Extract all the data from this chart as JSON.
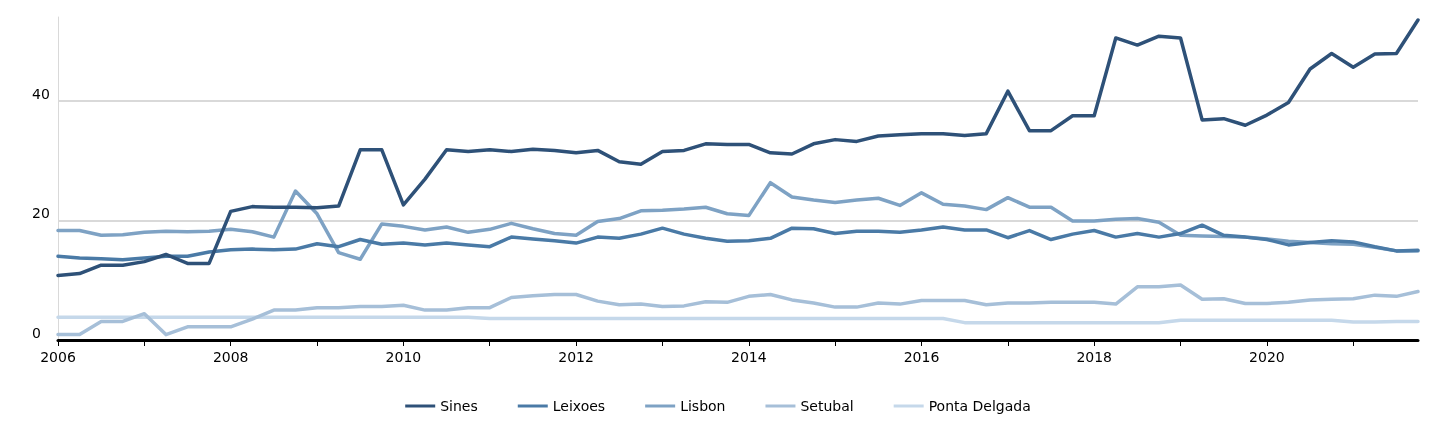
{
  "chart_data": {
    "type": "line",
    "xlim": [
      2006,
      2021.75
    ],
    "xticks": [
      2006,
      {
        "value": 2007,
        "label": null
      },
      2008,
      {
        "value": 2009,
        "label": null
      },
      2010,
      {
        "value": 2011,
        "label": null
      },
      2012,
      {
        "value": 2013,
        "label": null
      },
      2014,
      {
        "value": 2015,
        "label": null
      },
      2016,
      {
        "value": 2017,
        "label": null
      },
      2018,
      {
        "value": 2019,
        "label": null
      },
      2020,
      {
        "value": 2021,
        "label": null
      }
    ],
    "ylim": [
      0,
      54
    ],
    "yticks": [
      0,
      20,
      40
    ],
    "grid": "y",
    "legend": "bottom",
    "line_style": "solid",
    "marker": "none",
    "x": [
      2006,
      2006.25,
      2006.5,
      2006.75,
      2007,
      2007.25,
      2007.5,
      2007.75,
      2008,
      2008.25,
      2008.5,
      2008.75,
      2009,
      2009.25,
      2009.5,
      2009.75,
      2010,
      2010.25,
      2010.5,
      2010.75,
      2011,
      2011.25,
      2011.5,
      2011.75,
      2012,
      2012.25,
      2012.5,
      2012.75,
      2013,
      2013.25,
      2013.5,
      2013.75,
      2014,
      2014.25,
      2014.5,
      2014.75,
      2015,
      2015.25,
      2015.5,
      2015.75,
      2016,
      2016.25,
      2016.5,
      2016.75,
      2017,
      2017.25,
      2017.5,
      2017.75,
      2018,
      2018.25,
      2018.5,
      2018.75,
      2019,
      2019.25,
      2019.5,
      2019.75,
      2020,
      2020.25,
      2020.5,
      2020.75,
      2021,
      2021.25,
      2021.5,
      2021.75
    ],
    "series": [
      {
        "name": "Sines",
        "color": "#2e5178",
        "values": [
          10.8,
          11.1,
          12.5,
          12.5,
          13.1,
          14.3,
          12.8,
          12.8,
          21.5,
          22.3,
          22.2,
          22.2,
          22.1,
          22.4,
          31.8,
          31.8,
          22.6,
          26.9,
          31.8,
          31.5,
          31.8,
          31.5,
          31.9,
          31.7,
          31.3,
          31.7,
          29.8,
          29.4,
          31.5,
          31.7,
          32.8,
          32.7,
          32.7,
          31.3,
          31.1,
          32.8,
          33.5,
          33.2,
          34.1,
          34.3,
          34.5,
          34.5,
          34.2,
          34.5,
          41.6,
          35.0,
          35.0,
          37.5,
          37.5,
          50.5,
          49.3,
          50.8,
          50.5,
          36.8,
          37.0,
          35.9,
          37.6,
          39.7,
          45.3,
          47.9,
          45.6,
          47.8,
          47.9,
          53.5
        ]
      },
      {
        "name": "Leixoes",
        "color": "#4a7aa6",
        "values": [
          14.0,
          13.7,
          13.6,
          13.4,
          13.7,
          14.0,
          14.0,
          14.7,
          15.1,
          15.2,
          15.1,
          15.2,
          16.1,
          15.6,
          16.8,
          16.0,
          16.2,
          15.9,
          16.2,
          15.9,
          15.6,
          17.2,
          16.9,
          16.6,
          16.2,
          17.2,
          17.0,
          17.7,
          18.7,
          17.7,
          17.0,
          16.5,
          16.6,
          17.0,
          18.7,
          18.6,
          17.8,
          18.2,
          18.2,
          18.0,
          18.4,
          18.9,
          18.4,
          18.4,
          17.1,
          18.3,
          16.8,
          17.7,
          18.3,
          17.2,
          17.8,
          17.2,
          17.8,
          19.2,
          17.5,
          17.2,
          16.8,
          15.9,
          16.3,
          16.6,
          16.4,
          15.6,
          14.9,
          15.0
        ]
      },
      {
        "name": "Lisbon",
        "color": "#7ea2c4",
        "values": [
          18.3,
          18.3,
          17.5,
          17.6,
          18.0,
          18.2,
          18.1,
          18.2,
          18.5,
          18.1,
          17.2,
          24.9,
          21.1,
          14.6,
          13.5,
          19.4,
          19.0,
          18.4,
          18.9,
          18.0,
          18.5,
          19.5,
          18.6,
          17.8,
          17.5,
          19.8,
          20.3,
          21.6,
          21.7,
          21.9,
          22.2,
          21.1,
          20.8,
          26.3,
          23.9,
          23.4,
          23.0,
          23.4,
          23.7,
          22.5,
          24.6,
          22.7,
          22.4,
          21.8,
          23.8,
          22.2,
          22.2,
          19.9,
          19.9,
          20.2,
          20.3,
          19.7,
          17.5,
          17.4,
          17.3,
          17.2,
          16.9,
          16.5,
          16.3,
          16.1,
          16.0,
          15.5,
          14.9,
          14.9
        ]
      },
      {
        "name": "Setubal",
        "color": "#a6bfd8",
        "values": [
          0.9,
          0.9,
          3.1,
          3.1,
          4.4,
          0.9,
          2.2,
          2.2,
          2.2,
          3.5,
          5.0,
          5.0,
          5.4,
          5.4,
          5.6,
          5.6,
          5.8,
          5.0,
          5.0,
          5.4,
          5.4,
          7.1,
          7.4,
          7.6,
          7.6,
          6.5,
          5.9,
          6.0,
          5.6,
          5.7,
          6.4,
          6.3,
          7.3,
          7.6,
          6.7,
          6.2,
          5.5,
          5.5,
          6.2,
          6.0,
          6.6,
          6.6,
          6.6,
          5.9,
          6.2,
          6.2,
          6.3,
          6.3,
          6.3,
          6.0,
          8.9,
          8.9,
          9.2,
          6.8,
          6.9,
          6.1,
          6.1,
          6.3,
          6.7,
          6.8,
          6.9,
          7.5,
          7.3,
          8.1
        ]
      },
      {
        "name": "Ponta Delgada",
        "color": "#c5d8ea",
        "values": [
          3.8,
          3.8,
          3.8,
          3.8,
          3.8,
          3.8,
          3.8,
          3.8,
          3.8,
          3.8,
          3.8,
          3.8,
          3.8,
          3.8,
          3.8,
          3.8,
          3.8,
          3.8,
          3.8,
          3.8,
          3.6,
          3.6,
          3.6,
          3.6,
          3.6,
          3.6,
          3.6,
          3.6,
          3.6,
          3.6,
          3.6,
          3.6,
          3.6,
          3.6,
          3.6,
          3.6,
          3.6,
          3.6,
          3.6,
          3.6,
          3.6,
          3.6,
          2.9,
          2.9,
          2.9,
          2.9,
          2.9,
          2.9,
          2.9,
          2.9,
          2.9,
          2.9,
          3.3,
          3.3,
          3.3,
          3.3,
          3.3,
          3.3,
          3.3,
          3.3,
          3.0,
          3.0,
          3.1,
          3.1
        ]
      }
    ]
  }
}
